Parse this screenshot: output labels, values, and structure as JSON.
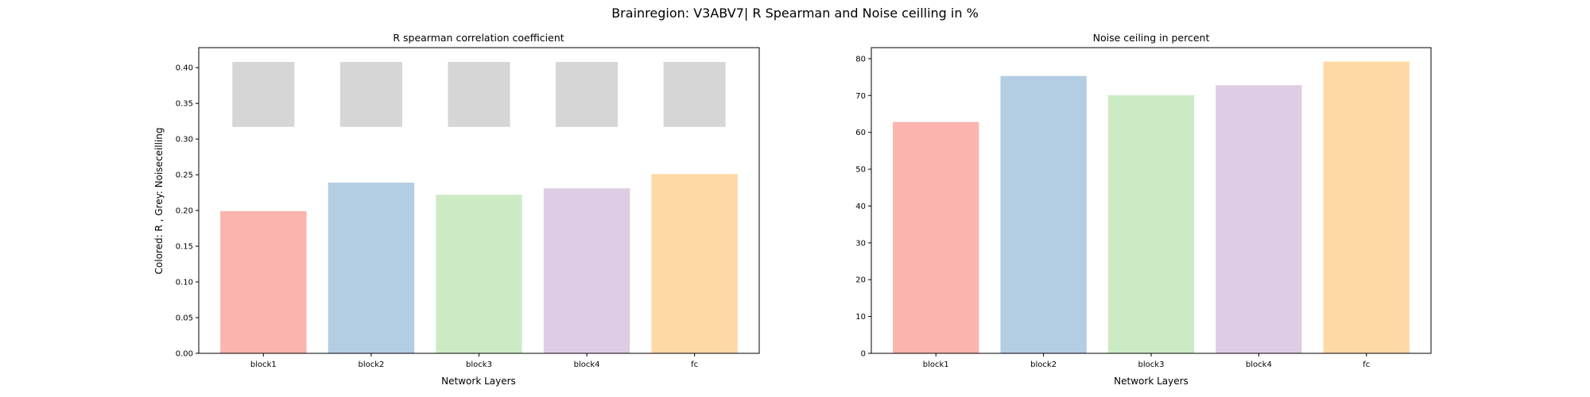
{
  "figure": {
    "suptitle": "Brainregion: V3ABV7| R Spearman and Noise ceilling in %"
  },
  "chart_data": [
    {
      "type": "bar",
      "title": "R spearman correlation coefficient",
      "xlabel": "Network Layers",
      "ylabel": "Colored: R , Grey: Noiseceilling",
      "categories": [
        "block1",
        "block2",
        "block3",
        "block4",
        "fc"
      ],
      "series": [
        {
          "values": [
            0.199,
            0.239,
            0.222,
            0.231,
            0.251
          ]
        }
      ],
      "noise_ceiling": {
        "lower": 0.317,
        "upper": 0.408,
        "color": "#d6d6d6"
      },
      "ylim": [
        0,
        0.428
      ],
      "yticks": [
        0.0,
        0.05,
        0.1,
        0.15,
        0.2,
        0.25,
        0.3,
        0.35,
        0.4
      ],
      "ytick_labels": [
        "0.00",
        "0.05",
        "0.10",
        "0.15",
        "0.20",
        "0.25",
        "0.30",
        "0.35",
        "0.40"
      ],
      "colors": [
        "#fbb4ae",
        "#b3cde3",
        "#ccebc5",
        "#decbe4",
        "#fed9a6"
      ],
      "grid": false,
      "legend": "none"
    },
    {
      "type": "bar",
      "title": "Noise ceiling in percent",
      "xlabel": "Network Layers",
      "ylabel": "",
      "categories": [
        "block1",
        "block2",
        "block3",
        "block4",
        "fc"
      ],
      "series": [
        {
          "values": [
            62.8,
            75.3,
            70.1,
            72.8,
            79.2
          ]
        }
      ],
      "ylim": [
        0,
        83
      ],
      "yticks": [
        0,
        10,
        20,
        30,
        40,
        50,
        60,
        70,
        80
      ],
      "ytick_labels": [
        "0",
        "10",
        "20",
        "30",
        "40",
        "50",
        "60",
        "70",
        "80"
      ],
      "colors": [
        "#fbb4ae",
        "#b3cde3",
        "#ccebc5",
        "#decbe4",
        "#fed9a6"
      ],
      "grid": false,
      "legend": "none"
    }
  ]
}
